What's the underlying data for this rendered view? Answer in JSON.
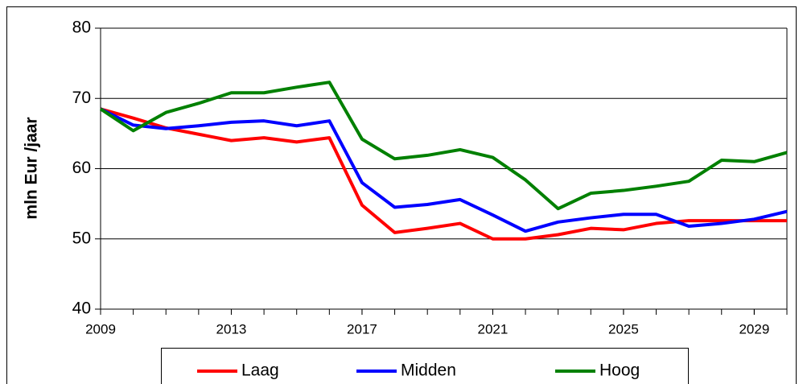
{
  "chart_data": {
    "type": "line",
    "x": [
      2009,
      2010,
      2011,
      2012,
      2013,
      2014,
      2015,
      2016,
      2017,
      2018,
      2019,
      2020,
      2021,
      2022,
      2023,
      2024,
      2025,
      2026,
      2027,
      2028,
      2029,
      2030
    ],
    "xlim": [
      2009,
      2030
    ],
    "xticks": [
      2009,
      2013,
      2017,
      2021,
      2025,
      2029
    ],
    "ylim": [
      40,
      80
    ],
    "yticks": [
      40,
      50,
      60,
      70,
      80
    ],
    "grid": true,
    "ylabel": "mln Eur /jaar",
    "legend": "bottom",
    "series": [
      {
        "name": "Laag",
        "color": "#ff0000",
        "values": [
          68.5,
          67.2,
          65.8,
          64.9,
          64.0,
          64.4,
          63.8,
          64.4,
          54.8,
          50.9,
          51.5,
          52.2,
          50.0,
          50.0,
          50.6,
          51.5,
          51.3,
          52.2,
          52.6,
          52.6,
          52.6,
          52.6
        ]
      },
      {
        "name": "Midden",
        "color": "#0000ff",
        "values": [
          68.5,
          66.2,
          65.7,
          66.1,
          66.6,
          66.8,
          66.1,
          66.8,
          58.0,
          54.5,
          54.9,
          55.6,
          53.4,
          51.1,
          52.4,
          53.0,
          53.5,
          53.5,
          51.8,
          52.2,
          52.8,
          53.9
        ]
      },
      {
        "name": "Hoog",
        "color": "#008000",
        "values": [
          68.5,
          65.4,
          68.0,
          69.3,
          70.8,
          70.8,
          71.6,
          72.3,
          64.2,
          61.4,
          61.9,
          62.7,
          61.6,
          58.4,
          54.3,
          56.5,
          56.9,
          57.5,
          58.2,
          61.2,
          61.0,
          62.3
        ]
      }
    ]
  }
}
